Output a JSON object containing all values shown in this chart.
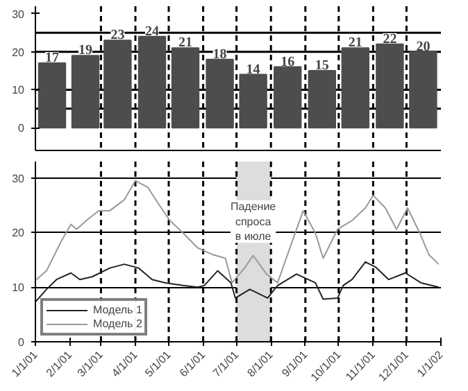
{
  "chart_data": [
    {
      "type": "bar",
      "x": [
        "2001-01-16",
        "2001-02-15",
        "2001-03-16",
        "2001-04-16",
        "2001-05-16",
        "2001-06-16",
        "2001-07-16",
        "2001-08-16",
        "2001-09-16",
        "2001-10-16",
        "2001-11-16",
        "2001-12-16"
      ],
      "values": [
        17,
        19,
        23,
        24,
        21,
        18,
        14,
        16,
        15,
        21,
        22,
        20
      ],
      "color": "#4d4d4d",
      "data_labels": true,
      "xlim": [
        "2001-01-01",
        "2002-01-01"
      ],
      "ylim": [
        -6,
        32
      ],
      "yticks": [
        0,
        10,
        20,
        30
      ],
      "tick_labels": "y",
      "grid": false,
      "ref_lines": [
        {
          "axis": "y",
          "value": 5,
          "line_style": "solid"
        },
        {
          "axis": "y",
          "value": 10,
          "line_style": "solid"
        },
        {
          "axis": "y",
          "value": 20,
          "line_style": "solid"
        },
        {
          "axis": "y",
          "value": 25,
          "line_style": "solid"
        },
        {
          "axis": "x",
          "value": "2001-03-01",
          "line_style": "dashed"
        },
        {
          "axis": "x",
          "value": "2001-04-01",
          "line_style": "dashed"
        },
        {
          "axis": "x",
          "value": "2001-05-01",
          "line_style": "dashed"
        },
        {
          "axis": "x",
          "value": "2001-06-01",
          "line_style": "dashed"
        },
        {
          "axis": "x",
          "value": "2001-07-01",
          "line_style": "dashed"
        },
        {
          "axis": "x",
          "value": "2001-08-01",
          "line_style": "dashed"
        },
        {
          "axis": "x",
          "value": "2001-09-01",
          "line_style": "dashed"
        },
        {
          "axis": "x",
          "value": "2001-10-01",
          "line_style": "dashed"
        },
        {
          "axis": "x",
          "value": "2001-11-01",
          "line_style": "dashed"
        },
        {
          "axis": "x",
          "value": "2001-12-01",
          "line_style": "dashed"
        }
      ]
    },
    {
      "type": "line",
      "xlim": [
        "2001-01-01",
        "2002-01-01"
      ],
      "ylim": [
        0,
        33
      ],
      "yticks": [
        0,
        10,
        20,
        30
      ],
      "xticks": [
        {
          "value": "2001-01-01",
          "label": "1/1/01"
        },
        {
          "value": "2001-02-01",
          "label": "2/1/01"
        },
        {
          "value": "2001-03-01",
          "label": "3/1/01"
        },
        {
          "value": "2001-04-01",
          "label": "4/1/01"
        },
        {
          "value": "2001-05-01",
          "label": "5/1/01"
        },
        {
          "value": "2001-06-01",
          "label": "6/1/01"
        },
        {
          "value": "2001-07-01",
          "label": "7/1/01"
        },
        {
          "value": "2001-08-01",
          "label": "8/1/01"
        },
        {
          "value": "2001-09-01",
          "label": "9/1/01"
        },
        {
          "value": "2001-10-01",
          "label": "10/1/01"
        },
        {
          "value": "2001-11-01",
          "label": "11/1/01"
        },
        {
          "value": "2001-12-01",
          "label": "12/1/01"
        },
        {
          "value": "2002-01-01",
          "label": "1/1/02"
        }
      ],
      "grid": "y",
      "legend": "bottom left",
      "line_style": "solid",
      "series": [
        {
          "name": "Модель 1",
          "color": "#222222",
          "x": [
            "2001-01-01",
            "2001-01-11",
            "2001-01-20",
            "2001-02-02",
            "2001-02-10",
            "2001-02-21",
            "2001-03-09",
            "2001-03-22",
            "2001-04-04",
            "2001-04-16",
            "2001-04-28",
            "2001-05-14",
            "2001-05-27",
            "2001-06-02",
            "2001-06-14",
            "2001-06-26",
            "2001-06-30",
            "2001-07-13",
            "2001-07-29",
            "2001-08-07",
            "2001-08-24",
            "2001-09-10",
            "2001-09-17",
            "2001-09-30",
            "2001-10-05",
            "2001-10-13",
            "2001-10-25",
            "2001-11-03",
            "2001-11-15",
            "2001-11-30",
            "2001-12-14",
            "2001-12-30"
          ],
          "values": [
            7.3,
            9.6,
            11.4,
            12.6,
            11.4,
            11.9,
            13.5,
            14.2,
            13.5,
            11.4,
            10.8,
            10.3,
            10,
            10.3,
            13,
            10.8,
            8,
            9.6,
            8,
            10.3,
            12.4,
            10.8,
            7.8,
            8,
            10.3,
            11.4,
            14.6,
            13.7,
            11.4,
            12.6,
            10.8,
            10
          ]
        },
        {
          "name": "Модель 2",
          "color": "#999999",
          "x": [
            "2001-01-02",
            "2001-01-11",
            "2001-01-24",
            "2001-02-02",
            "2001-02-07",
            "2001-02-16",
            "2001-02-27",
            "2001-03-09",
            "2001-03-22",
            "2001-04-01",
            "2001-04-12",
            "2001-04-22",
            "2001-05-02",
            "2001-05-14",
            "2001-05-27",
            "2001-06-09",
            "2001-06-21",
            "2001-06-27",
            "2001-07-09",
            "2001-07-16",
            "2001-07-28",
            "2001-08-07",
            "2001-08-20",
            "2001-08-30",
            "2001-09-10",
            "2001-09-17",
            "2001-09-30",
            "2001-10-13",
            "2001-10-25",
            "2001-11-01",
            "2001-11-12",
            "2001-11-22",
            "2001-12-02",
            "2001-12-13",
            "2001-12-21",
            "2001-12-30"
          ],
          "values": [
            11.4,
            13,
            18.3,
            21.5,
            20.6,
            22.2,
            24,
            24,
            26,
            29.5,
            28.3,
            25.2,
            22.2,
            19.9,
            17.2,
            16,
            15.3,
            10.8,
            13.7,
            15.8,
            12.4,
            10.8,
            18.3,
            24,
            19.9,
            15.3,
            20.6,
            22.2,
            24.5,
            26.8,
            24.5,
            20.6,
            24.5,
            19.9,
            16,
            14.2
          ]
        }
      ],
      "bands": [
        {
          "axis": "x",
          "from": "2001-07-01",
          "to": "2001-08-01",
          "color": "#dddddd"
        }
      ],
      "ref_lines": [
        {
          "axis": "x",
          "value": "2001-03-01",
          "line_style": "dashed"
        },
        {
          "axis": "x",
          "value": "2001-04-01",
          "line_style": "dashed"
        },
        {
          "axis": "x",
          "value": "2001-05-01",
          "line_style": "dashed"
        },
        {
          "axis": "x",
          "value": "2001-06-01",
          "line_style": "dashed"
        },
        {
          "axis": "x",
          "value": "2001-07-01",
          "line_style": "dashed"
        },
        {
          "axis": "x",
          "value": "2001-08-01",
          "line_style": "dashed"
        },
        {
          "axis": "x",
          "value": "2001-09-01",
          "line_style": "dashed"
        },
        {
          "axis": "x",
          "value": "2001-10-01",
          "line_style": "dashed"
        },
        {
          "axis": "x",
          "value": "2001-11-01",
          "line_style": "dashed"
        },
        {
          "axis": "x",
          "value": "2001-12-01",
          "line_style": "dashed"
        }
      ],
      "annotations": [
        {
          "text": "Падение\nспроса\nв июле",
          "x": "2001-07-16",
          "y": 22
        }
      ]
    }
  ]
}
